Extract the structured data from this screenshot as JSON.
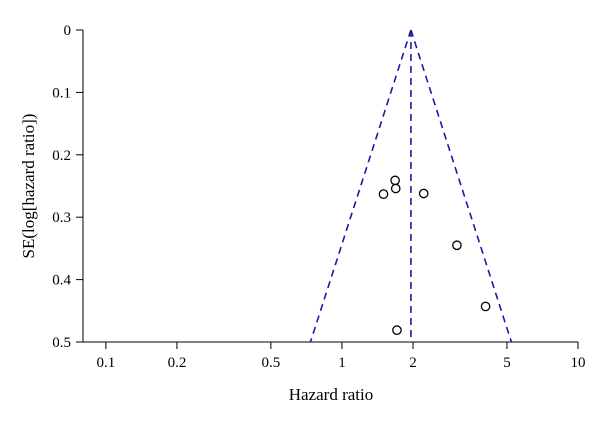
{
  "chart_data": {
    "type": "scatter",
    "title": "",
    "xlabel": "Hazard ratio",
    "ylabel": "SE(log[hazard ratio])",
    "x_scale": "log",
    "xlim": [
      0.08,
      10
    ],
    "ylim": [
      0,
      0.5
    ],
    "y_inverted": true,
    "x_ticks": [
      0.1,
      0.2,
      0.5,
      1,
      2,
      5,
      10
    ],
    "x_tick_labels": [
      "0.1",
      "0.2",
      "0.5",
      "1",
      "2",
      "5",
      "10"
    ],
    "y_ticks": [
      0,
      0.1,
      0.2,
      0.3,
      0.4,
      0.5
    ],
    "y_tick_labels": [
      "0",
      "0.1",
      "0.2",
      "0.3",
      "0.4",
      "0.5"
    ],
    "pooled_estimate": 1.96,
    "funnel_line_color": "#1a1aa6",
    "points": [
      {
        "x": 1.5,
        "y": 0.263
      },
      {
        "x": 1.68,
        "y": 0.241
      },
      {
        "x": 1.69,
        "y": 0.254
      },
      {
        "x": 2.22,
        "y": 0.262
      },
      {
        "x": 3.07,
        "y": 0.345
      },
      {
        "x": 4.06,
        "y": 0.443
      },
      {
        "x": 1.71,
        "y": 0.481
      }
    ]
  }
}
